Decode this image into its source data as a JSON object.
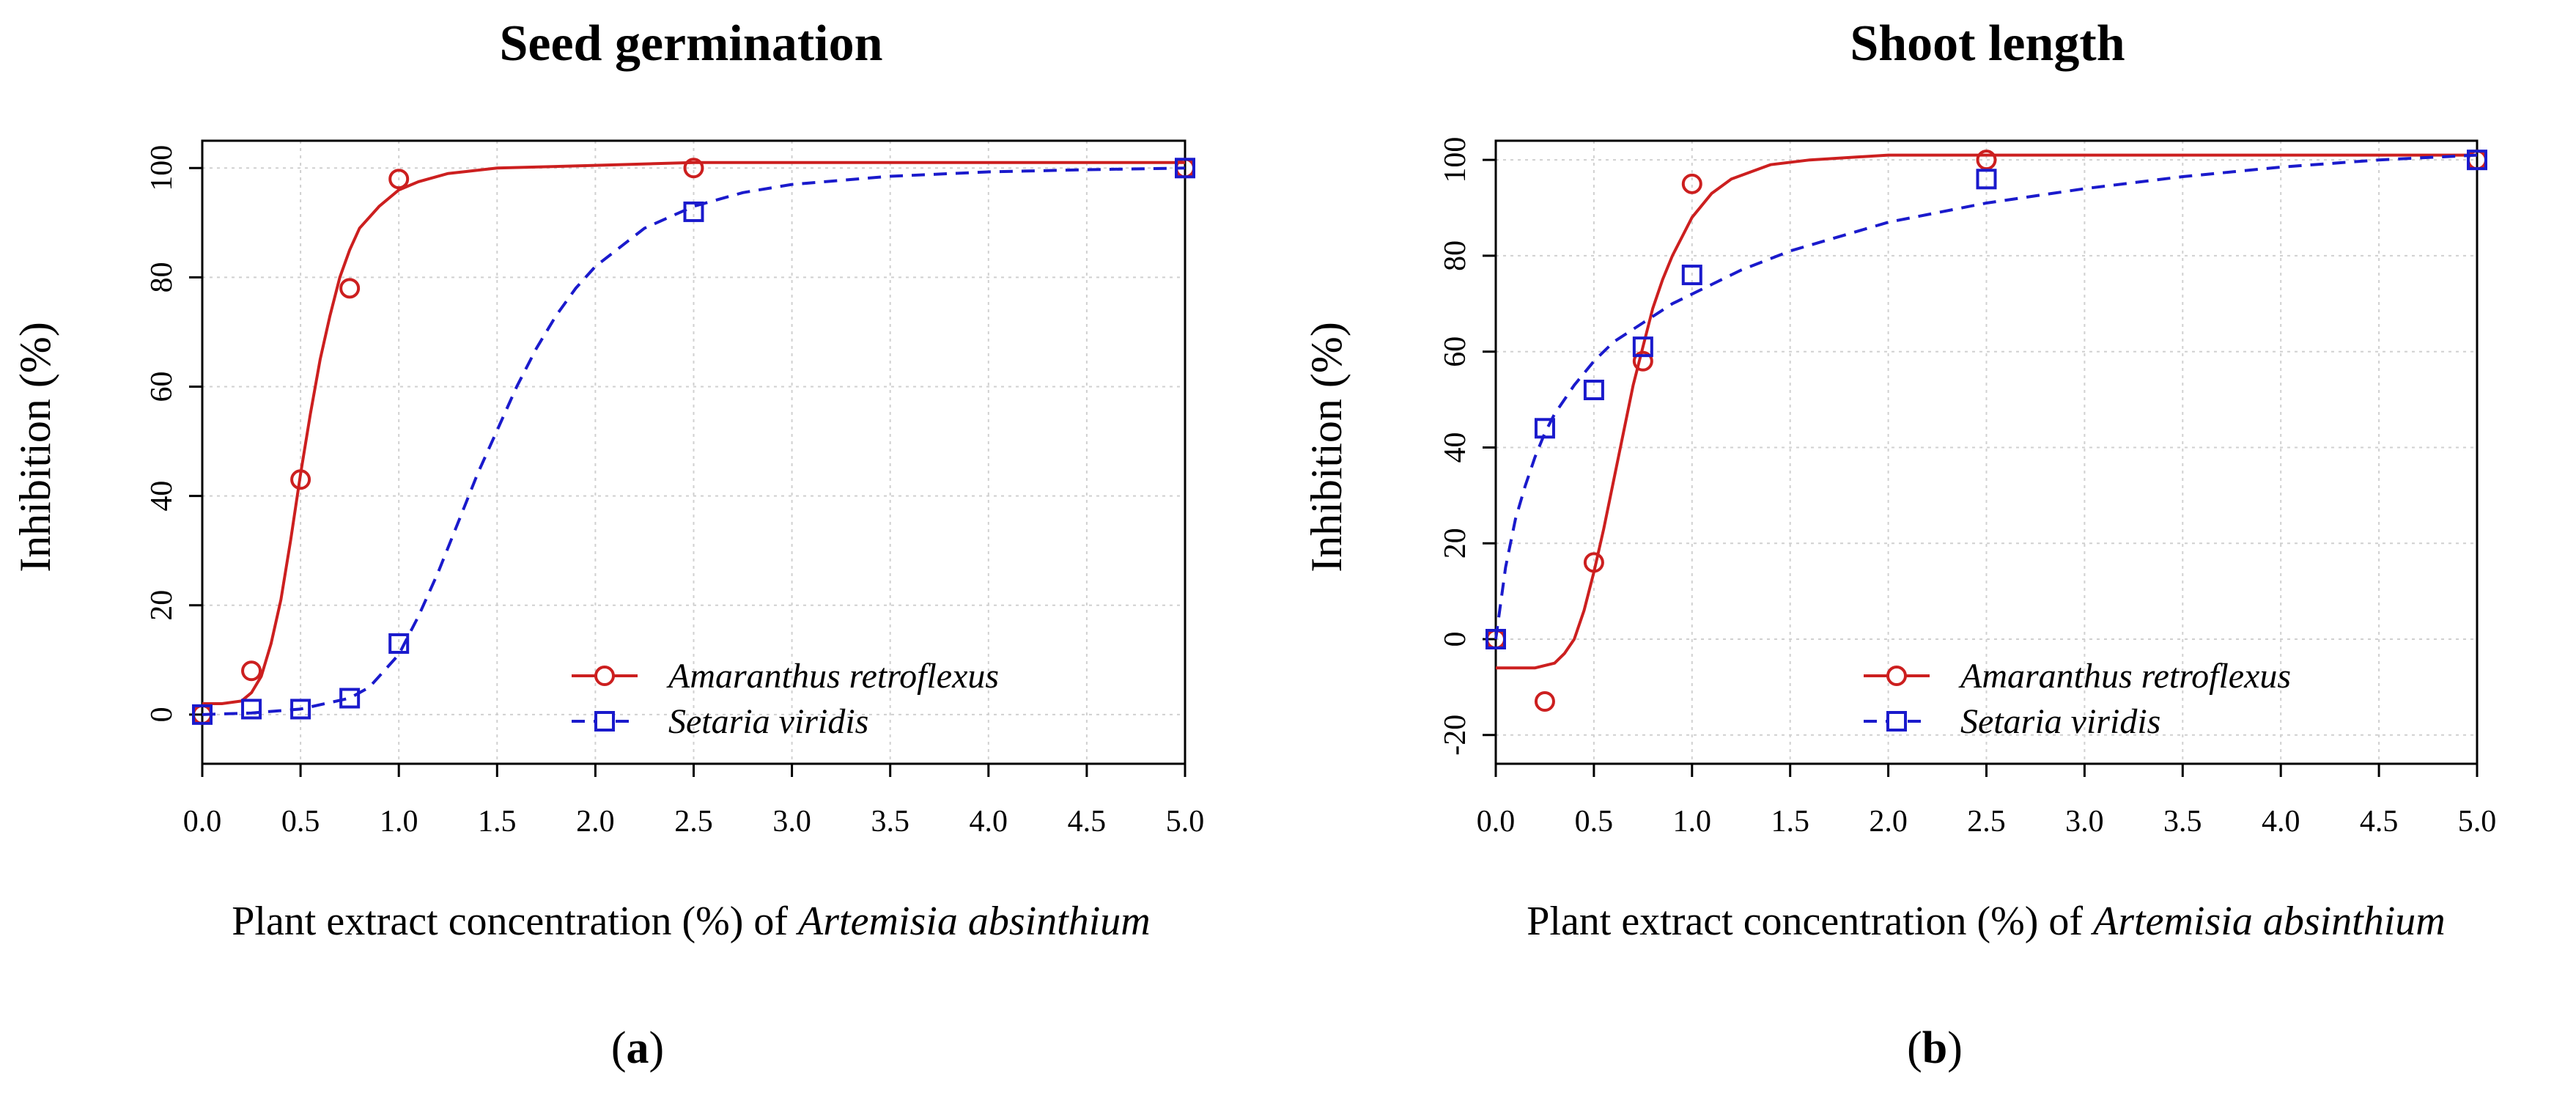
{
  "colors": {
    "amaranthus": "#cc1f1f",
    "setaria": "#1a1acc",
    "grid": "#d0d0d0",
    "axis": "#000000"
  },
  "legend_labels": [
    "Amaranthus retroflexus",
    "Setaria viridis"
  ],
  "chart_data": [
    {
      "type": "line",
      "panel_label": "a",
      "title": "Seed germination",
      "ylabel": "Inhibition (%)",
      "xlabel_prefix": "Plant extract concentration (%) of ",
      "xlabel_species": "Artemisia absinthium",
      "xlim": [
        0,
        5
      ],
      "ylim": [
        -9,
        105
      ],
      "x_ticks": [
        "0.0",
        "0.5",
        "1.0",
        "1.5",
        "2.0",
        "2.5",
        "3.0",
        "3.5",
        "4.0",
        "4.5",
        "5.0"
      ],
      "y_ticks": [
        "0",
        "20",
        "40",
        "60",
        "80",
        "100"
      ],
      "grid": true,
      "legend_position": "bottom-right",
      "series": [
        {
          "name": "Amaranthus retroflexus",
          "marker": "circle",
          "line": "solid",
          "points": {
            "x": [
              0,
              0.25,
              0.5,
              0.75,
              1.0,
              2.5,
              5.0
            ],
            "y": [
              0,
              8,
              43,
              78,
              98,
              100,
              100
            ]
          },
          "fit": {
            "x": [
              0,
              0.1,
              0.2,
              0.25,
              0.3,
              0.35,
              0.4,
              0.45,
              0.5,
              0.55,
              0.6,
              0.65,
              0.7,
              0.75,
              0.8,
              0.9,
              1.0,
              1.1,
              1.25,
              1.5,
              2.0,
              2.5,
              3.0,
              4.0,
              5.0
            ],
            "y": [
              2,
              2,
              2.5,
              4,
              7,
              13,
              21,
              32,
              44,
              55,
              65,
              73,
              80,
              85,
              89,
              93,
              96,
              97.5,
              99,
              100,
              100.5,
              101,
              101,
              101,
              101
            ]
          }
        },
        {
          "name": "Setaria viridis",
          "marker": "square",
          "line": "dashed",
          "points": {
            "x": [
              0,
              0.25,
              0.5,
              0.75,
              1.0,
              2.5,
              5.0
            ],
            "y": [
              0,
              1,
              1,
              3,
              13,
              92,
              100
            ]
          },
          "fit": {
            "x": [
              0,
              0.25,
              0.5,
              0.75,
              0.85,
              1.0,
              1.1,
              1.2,
              1.3,
              1.4,
              1.5,
              1.6,
              1.7,
              1.8,
              1.9,
              2.0,
              2.25,
              2.5,
              2.75,
              3.0,
              3.5,
              4.0,
              4.5,
              5.0
            ],
            "y": [
              0,
              0.3,
              1,
              3,
              5,
              11,
              18,
              26,
              35,
              44,
              52,
              60,
              67,
              73,
              78,
              82,
              89,
              93,
              95.5,
              97,
              98.5,
              99.3,
              99.7,
              100
            ]
          }
        }
      ]
    },
    {
      "type": "line",
      "panel_label": "b",
      "title": "Shoot length",
      "ylabel": "Inhibition (%)",
      "xlabel_prefix": "Plant extract concentration (%) of ",
      "xlabel_species": "Artemisia absinthium",
      "xlim": [
        0,
        5
      ],
      "ylim": [
        -26,
        104
      ],
      "x_ticks": [
        "0.0",
        "0.5",
        "1.0",
        "1.5",
        "2.0",
        "2.5",
        "3.0",
        "3.5",
        "4.0",
        "4.5",
        "5.0"
      ],
      "y_ticks": [
        "-20",
        "0",
        "20",
        "40",
        "60",
        "80",
        "100"
      ],
      "grid": true,
      "legend_position": "bottom-right",
      "series": [
        {
          "name": "Amaranthus retroflexus",
          "marker": "circle",
          "line": "solid",
          "points": {
            "x": [
              0,
              0.25,
              0.5,
              0.75,
              1.0,
              2.5,
              5.0
            ],
            "y": [
              0,
              -13,
              16,
              58,
              95,
              100,
              100
            ]
          },
          "fit": {
            "x": [
              0,
              0.1,
              0.2,
              0.3,
              0.35,
              0.4,
              0.45,
              0.5,
              0.55,
              0.6,
              0.65,
              0.7,
              0.75,
              0.8,
              0.85,
              0.9,
              1.0,
              1.1,
              1.2,
              1.4,
              1.6,
              2.0,
              2.5,
              3.0,
              4.0,
              5.0
            ],
            "y": [
              -6,
              -6,
              -6,
              -5,
              -3,
              0,
              6,
              14,
              23,
              33,
              43,
              53,
              61,
              69,
              75,
              80,
              88,
              93,
              96,
              99,
              100,
              101,
              101,
              101,
              101,
              101
            ]
          }
        },
        {
          "name": "Setaria viridis",
          "marker": "square",
          "line": "dashed",
          "points": {
            "x": [
              0,
              0.25,
              0.5,
              0.75,
              1.0,
              2.5,
              5.0
            ],
            "y": [
              0,
              44,
              52,
              61,
              76,
              96,
              100
            ]
          },
          "fit": {
            "x": [
              0,
              0.05,
              0.1,
              0.15,
              0.2,
              0.25,
              0.3,
              0.4,
              0.5,
              0.6,
              0.75,
              0.9,
              1.0,
              1.25,
              1.5,
              1.75,
              2.0,
              2.5,
              3.0,
              3.5,
              4.0,
              4.5,
              5.0
            ],
            "y": [
              0,
              15,
              25,
              32,
              38,
              43,
              47,
              53,
              58,
              62,
              66,
              70,
              72,
              77,
              81,
              84,
              87,
              91,
              94,
              96.5,
              98.5,
              100,
              101
            ]
          }
        }
      ]
    }
  ]
}
